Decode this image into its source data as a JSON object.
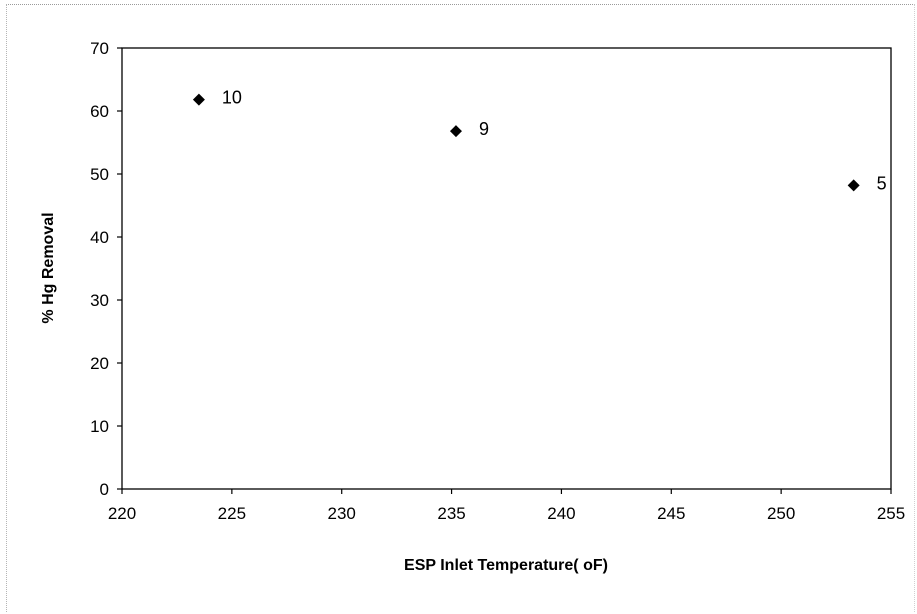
{
  "chart_data": {
    "type": "scatter",
    "title": "",
    "xlabel": "ESP Inlet Temperature( oF)",
    "ylabel": "% Hg Removal",
    "xlim": [
      220,
      255
    ],
    "ylim": [
      0,
      70
    ],
    "xticks": [
      220,
      225,
      230,
      235,
      240,
      245,
      250,
      255
    ],
    "yticks": [
      0,
      10,
      20,
      30,
      40,
      50,
      60,
      70
    ],
    "grid": false,
    "legend": "none",
    "marker": "diamond",
    "marker_color": "#000000",
    "series": [
      {
        "points": [
          {
            "x": 223.5,
            "y": 61.8,
            "label": "10"
          },
          {
            "x": 235.2,
            "y": 56.8,
            "label": "9"
          },
          {
            "x": 253.3,
            "y": 48.2,
            "label": "5"
          }
        ]
      }
    ]
  }
}
